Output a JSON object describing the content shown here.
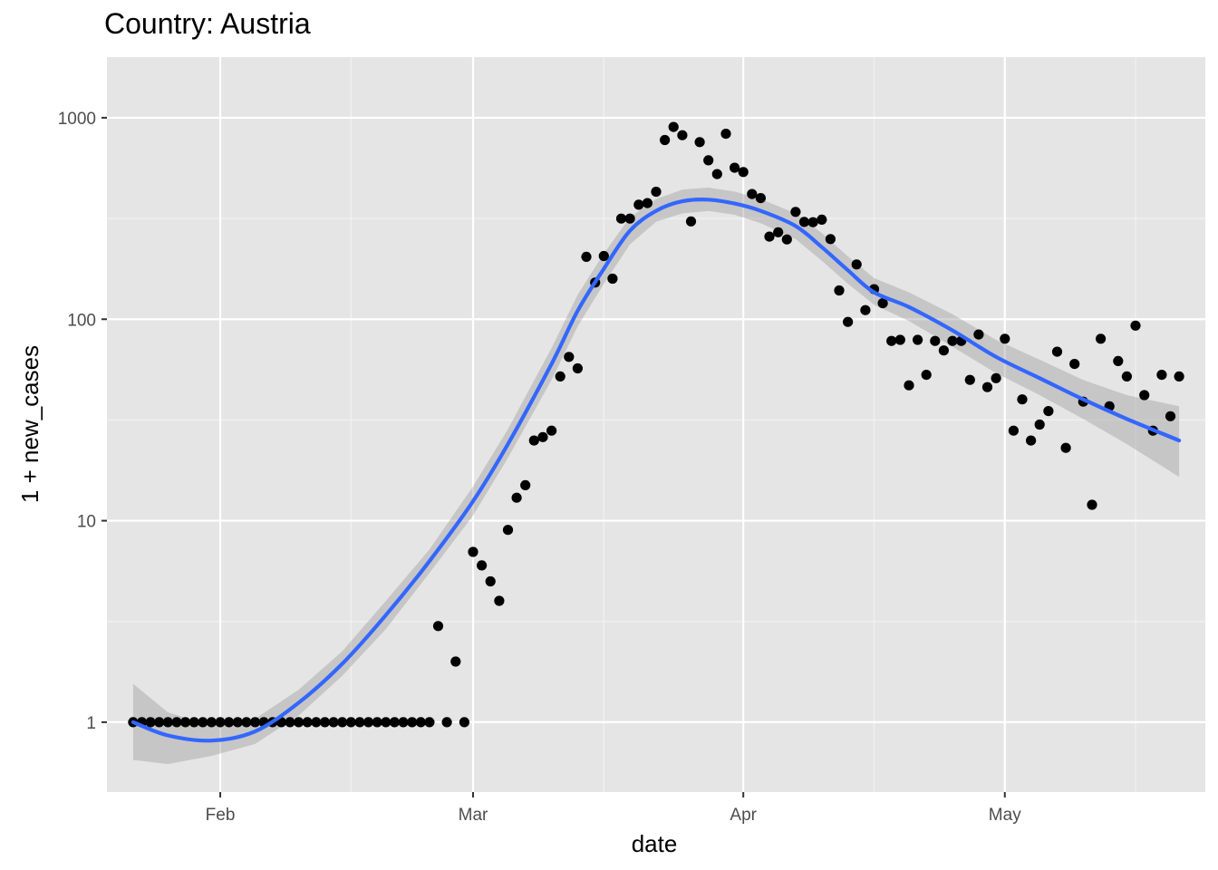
{
  "chart_data": {
    "type": "scatter",
    "title": "Country: Austria",
    "xlabel": "date",
    "ylabel": "1 + new_cases",
    "y_scale": "log10",
    "xlim": [
      "2020-01-19",
      "2020-05-24"
    ],
    "ylim": [
      0.45,
      2000
    ],
    "x_ticks": [
      {
        "label": "Feb",
        "date": "2020-02-01"
      },
      {
        "label": "Mar",
        "date": "2020-03-01"
      },
      {
        "label": "Apr",
        "date": "2020-04-01"
      },
      {
        "label": "May",
        "date": "2020-05-01"
      }
    ],
    "x_minor_dates": [
      "2020-01-16",
      "2020-02-16",
      "2020-03-16",
      "2020-04-16",
      "2020-05-16"
    ],
    "y_ticks": [
      1,
      10,
      100,
      1000
    ],
    "grid": true,
    "background": "#e5e5e5",
    "series": [
      {
        "kind": "points",
        "color": "#000000",
        "x": [
          "2020-01-22",
          "2020-01-23",
          "2020-01-24",
          "2020-01-25",
          "2020-01-26",
          "2020-01-27",
          "2020-01-28",
          "2020-01-29",
          "2020-01-30",
          "2020-01-31",
          "2020-02-01",
          "2020-02-02",
          "2020-02-03",
          "2020-02-04",
          "2020-02-05",
          "2020-02-06",
          "2020-02-07",
          "2020-02-08",
          "2020-02-09",
          "2020-02-10",
          "2020-02-11",
          "2020-02-12",
          "2020-02-13",
          "2020-02-14",
          "2020-02-15",
          "2020-02-16",
          "2020-02-17",
          "2020-02-18",
          "2020-02-19",
          "2020-02-20",
          "2020-02-21",
          "2020-02-22",
          "2020-02-23",
          "2020-02-24",
          "2020-02-25",
          "2020-02-26",
          "2020-02-27",
          "2020-02-28",
          "2020-02-29",
          "2020-03-01",
          "2020-03-02",
          "2020-03-03",
          "2020-03-04",
          "2020-03-05",
          "2020-03-06",
          "2020-03-07",
          "2020-03-08",
          "2020-03-09",
          "2020-03-10",
          "2020-03-11",
          "2020-03-12",
          "2020-03-13",
          "2020-03-14",
          "2020-03-15",
          "2020-03-16",
          "2020-03-17",
          "2020-03-18",
          "2020-03-19",
          "2020-03-20",
          "2020-03-21",
          "2020-03-22",
          "2020-03-23",
          "2020-03-24",
          "2020-03-25",
          "2020-03-26",
          "2020-03-27",
          "2020-03-28",
          "2020-03-29",
          "2020-03-30",
          "2020-03-31",
          "2020-04-01",
          "2020-04-02",
          "2020-04-03",
          "2020-04-04",
          "2020-04-05",
          "2020-04-06",
          "2020-04-07",
          "2020-04-08",
          "2020-04-09",
          "2020-04-10",
          "2020-04-11",
          "2020-04-12",
          "2020-04-13",
          "2020-04-14",
          "2020-04-15",
          "2020-04-16",
          "2020-04-17",
          "2020-04-18",
          "2020-04-19",
          "2020-04-20",
          "2020-04-21",
          "2020-04-22",
          "2020-04-23",
          "2020-04-24",
          "2020-04-25",
          "2020-04-26",
          "2020-04-27",
          "2020-04-28",
          "2020-04-29",
          "2020-04-30",
          "2020-05-01",
          "2020-05-02",
          "2020-05-03",
          "2020-05-04",
          "2020-05-05",
          "2020-05-06",
          "2020-05-07",
          "2020-05-08",
          "2020-05-09",
          "2020-05-10",
          "2020-05-11",
          "2020-05-12",
          "2020-05-13",
          "2020-05-14",
          "2020-05-15",
          "2020-05-16",
          "2020-05-17",
          "2020-05-18",
          "2020-05-19",
          "2020-05-20",
          "2020-05-21"
        ],
        "y": [
          1,
          1,
          1,
          1,
          1,
          1,
          1,
          1,
          1,
          1,
          1,
          1,
          1,
          1,
          1,
          1,
          1,
          1,
          1,
          1,
          1,
          1,
          1,
          1,
          1,
          1,
          1,
          1,
          1,
          1,
          1,
          1,
          1,
          1,
          1,
          3,
          1,
          2,
          1,
          7,
          6,
          5,
          4,
          9,
          13,
          15,
          25,
          26,
          28,
          52,
          65,
          57,
          204,
          152,
          206,
          159,
          316,
          316,
          370,
          377,
          429,
          775,
          900,
          819,
          306,
          757,
          615,
          525,
          833,
          565,
          538,
          418,
          399,
          257,
          270,
          249,
          341,
          304,
          303,
          312,
          250,
          139,
          97,
          187,
          111,
          141,
          120,
          78,
          79,
          47,
          79,
          53,
          78,
          70,
          78,
          78,
          50,
          84,
          46,
          51,
          80,
          28,
          40,
          25,
          30,
          35,
          69,
          23,
          60,
          39,
          12,
          80,
          37,
          62,
          52,
          93,
          42,
          28,
          53,
          33,
          52
        ]
      },
      {
        "kind": "smooth",
        "color": "#3366ff",
        "ribbon_color": "#999999",
        "x": [
          "2020-01-22",
          "2020-01-26",
          "2020-01-31",
          "2020-02-05",
          "2020-02-10",
          "2020-02-15",
          "2020-02-20",
          "2020-02-25",
          "2020-03-01",
          "2020-03-05",
          "2020-03-10",
          "2020-03-13",
          "2020-03-16",
          "2020-03-19",
          "2020-03-22",
          "2020-03-25",
          "2020-03-28",
          "2020-03-31",
          "2020-04-03",
          "2020-04-07",
          "2020-04-10",
          "2020-04-13",
          "2020-04-16",
          "2020-04-20",
          "2020-04-25",
          "2020-04-30",
          "2020-05-05",
          "2020-05-10",
          "2020-05-15",
          "2020-05-21"
        ],
        "y": [
          1.0,
          0.86,
          0.81,
          0.9,
          1.25,
          1.95,
          3.4,
          6.3,
          12.5,
          24,
          60,
          110,
          178,
          275,
          345,
          385,
          392,
          375,
          345,
          290,
          228,
          175,
          136,
          115,
          88,
          65,
          51,
          40,
          32,
          25
        ],
        "lower": [
          0.65,
          0.62,
          0.68,
          0.78,
          1.08,
          1.7,
          2.9,
          5.5,
          10.6,
          20.5,
          50,
          92,
          150,
          235,
          305,
          335,
          345,
          330,
          300,
          250,
          195,
          150,
          118,
          98,
          73,
          54,
          42,
          32,
          24,
          16.5
        ],
        "upper": [
          1.55,
          1.12,
          0.96,
          1.04,
          1.45,
          2.25,
          4.0,
          7.2,
          14.8,
          28.5,
          72,
          132,
          212,
          320,
          395,
          440,
          450,
          430,
          395,
          335,
          268,
          205,
          160,
          136,
          106,
          79,
          63,
          50,
          42,
          37
        ]
      }
    ]
  }
}
